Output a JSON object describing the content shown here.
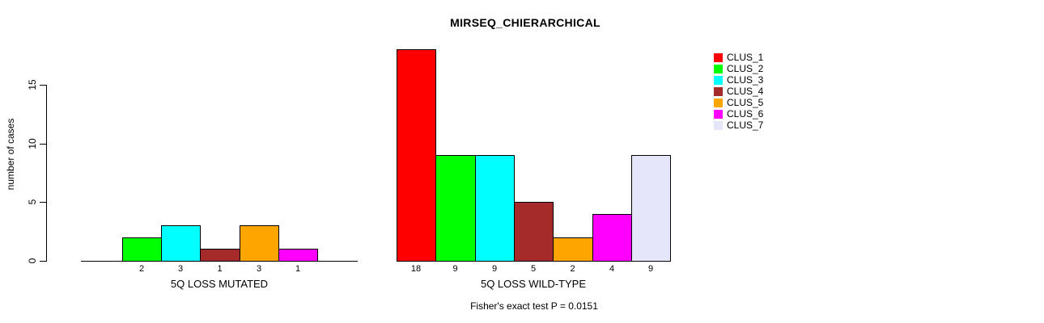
{
  "title": "MIRSEQ_CHIERARCHICAL",
  "annotation": "Fisher's exact test P = 0.0151",
  "y_axis": {
    "label": "number of cases",
    "ticks": [
      0,
      5,
      10,
      15
    ]
  },
  "chart_data": {
    "type": "bar",
    "title": "MIRSEQ_CHIERARCHICAL",
    "xlabel": "",
    "ylabel": "number of cases",
    "yticks": [
      0,
      5,
      10,
      15
    ],
    "ylim": [
      0,
      18
    ],
    "grid": false,
    "legend_position": "right",
    "categories": [
      "5Q LOSS MUTATED",
      "5Q LOSS WILD-TYPE"
    ],
    "series": [
      {
        "name": "CLUS_1",
        "color": "#FF0000",
        "values": [
          0,
          18
        ]
      },
      {
        "name": "CLUS_2",
        "color": "#00FF00",
        "values": [
          2,
          9
        ]
      },
      {
        "name": "CLUS_3",
        "color": "#00FFFF",
        "values": [
          3,
          9
        ]
      },
      {
        "name": "CLUS_4",
        "color": "#A52A2A",
        "values": [
          1,
          5
        ]
      },
      {
        "name": "CLUS_5",
        "color": "#FFA500",
        "values": [
          3,
          2
        ]
      },
      {
        "name": "CLUS_6",
        "color": "#FF00FF",
        "values": [
          1,
          4
        ]
      },
      {
        "name": "CLUS_7",
        "color": "#E6E6FA",
        "values": [
          0,
          9
        ]
      }
    ],
    "bar_value_labels": {
      "5Q LOSS MUTATED": [
        "2",
        "3",
        "1",
        "3",
        "1"
      ],
      "5Q LOSS WILD-TYPE": [
        "18",
        "9",
        "9",
        "5",
        "2",
        "4",
        "9"
      ]
    },
    "annotation": "Fisher's exact test P = 0.0151",
    "annotation_position": "bottom-center"
  }
}
